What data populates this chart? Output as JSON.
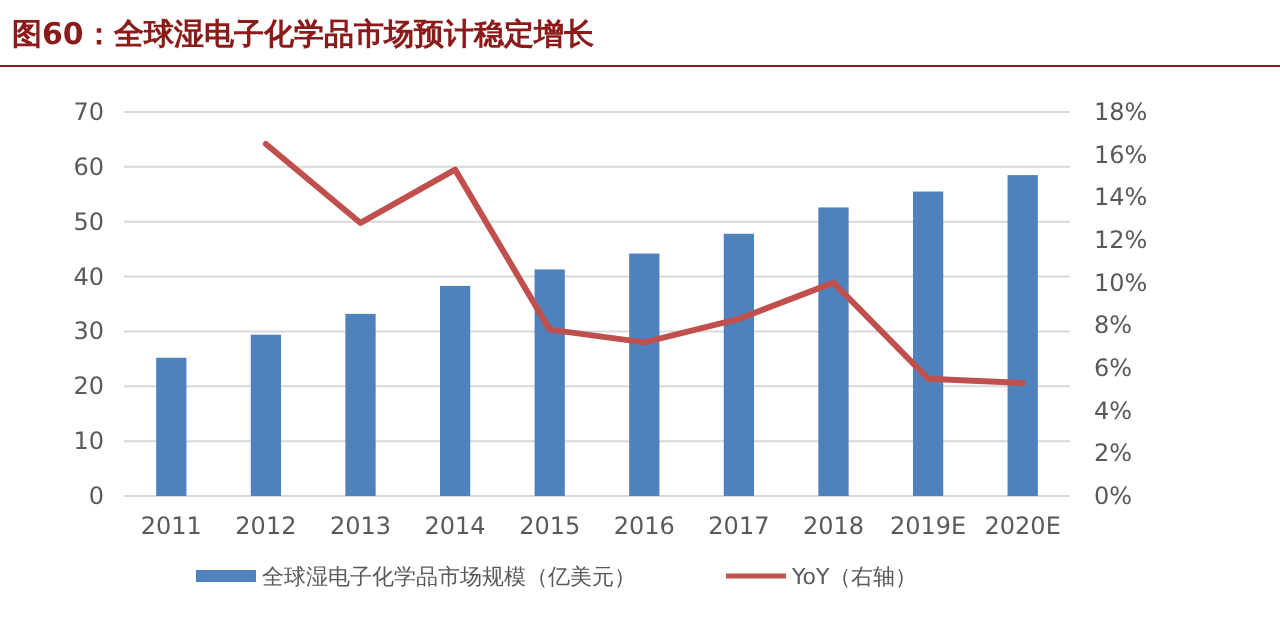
{
  "chart_data": {
    "type": "bar",
    "title": "图60：全球湿电子化学品市场预计稳定增长",
    "categories": [
      "2011",
      "2012",
      "2013",
      "2014",
      "2015",
      "2016",
      "2017",
      "2018",
      "2019E",
      "2020E"
    ],
    "series": [
      {
        "name": "全球湿电子化学品市场规模（亿美元）",
        "color": "#4f81bd",
        "values": [
          25.2,
          29.4,
          33.2,
          38.3,
          41.3,
          44.2,
          47.8,
          52.6,
          55.5,
          58.5
        ]
      },
      {
        "name": "YoY（右轴）",
        "type": "line",
        "axis": "y2",
        "color": "#c0504d",
        "values": [
          null,
          16.5,
          12.8,
          15.3,
          7.8,
          7.2,
          8.3,
          10.0,
          5.5,
          5.3
        ]
      }
    ],
    "ylim": [
      0,
      70
    ],
    "yticks": [
      0,
      10,
      20,
      30,
      40,
      50,
      60,
      70
    ],
    "y2lim": [
      0,
      18
    ],
    "y2ticks": [
      {
        "value": 0,
        "label": "0%"
      },
      {
        "value": 2,
        "label": "2%"
      },
      {
        "value": 4,
        "label": "4%"
      },
      {
        "value": 6,
        "label": "6%"
      },
      {
        "value": 8,
        "label": "8%"
      },
      {
        "value": 10,
        "label": "10%"
      },
      {
        "value": 12,
        "label": "12%"
      },
      {
        "value": 14,
        "label": "14%"
      },
      {
        "value": 16,
        "label": "16%"
      },
      {
        "value": 18,
        "label": "18%"
      }
    ],
    "grid": "y",
    "legend": "bottom"
  }
}
